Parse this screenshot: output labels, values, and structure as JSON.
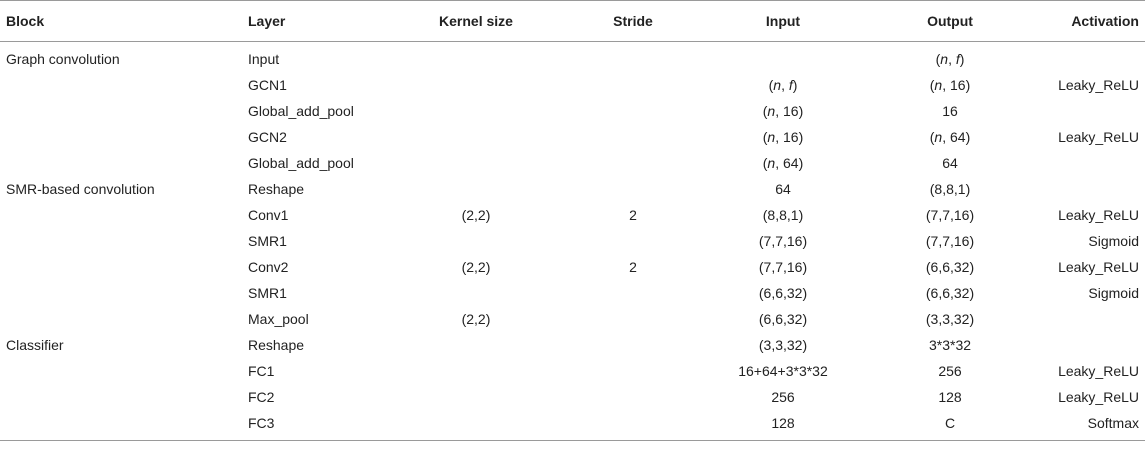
{
  "table": {
    "headers": {
      "block": "Block",
      "layer": "Layer",
      "kernel": "Kernel size",
      "stride": "Stride",
      "input": "Input",
      "output": "Output",
      "activation": "Activation"
    },
    "rows": [
      {
        "block": "Graph convolution",
        "layer": "Input",
        "kernel": "",
        "stride": "",
        "input": "",
        "output": "(n, f)",
        "activation": ""
      },
      {
        "block": "",
        "layer": "GCN1",
        "kernel": "",
        "stride": "",
        "input": "(n, f)",
        "output": "(n, 16)",
        "activation": "Leaky_ReLU"
      },
      {
        "block": "",
        "layer": "Global_add_pool",
        "kernel": "",
        "stride": "",
        "input": "(n, 16)",
        "output": "16",
        "activation": ""
      },
      {
        "block": "",
        "layer": "GCN2",
        "kernel": "",
        "stride": "",
        "input": "(n, 16)",
        "output": "(n, 64)",
        "activation": "Leaky_ReLU"
      },
      {
        "block": "",
        "layer": "Global_add_pool",
        "kernel": "",
        "stride": "",
        "input": "(n, 64)",
        "output": "64",
        "activation": ""
      },
      {
        "block": "SMR-based convolution",
        "layer": "Reshape",
        "kernel": "",
        "stride": "",
        "input": "64",
        "output": "(8,8,1)",
        "activation": ""
      },
      {
        "block": "",
        "layer": "Conv1",
        "kernel": "(2,2)",
        "stride": "2",
        "input": "(8,8,1)",
        "output": "(7,7,16)",
        "activation": "Leaky_ReLU"
      },
      {
        "block": "",
        "layer": "SMR1",
        "kernel": "",
        "stride": "",
        "input": "(7,7,16)",
        "output": "(7,7,16)",
        "activation": "Sigmoid"
      },
      {
        "block": "",
        "layer": "Conv2",
        "kernel": "(2,2)",
        "stride": "2",
        "input": "(7,7,16)",
        "output": "(6,6,32)",
        "activation": "Leaky_ReLU"
      },
      {
        "block": "",
        "layer": "SMR1",
        "kernel": "",
        "stride": "",
        "input": "(6,6,32)",
        "output": "(6,6,32)",
        "activation": "Sigmoid"
      },
      {
        "block": "",
        "layer": "Max_pool",
        "kernel": "(2,2)",
        "stride": "",
        "input": "(6,6,32)",
        "output": "(3,3,32)",
        "activation": ""
      },
      {
        "block": "Classifier",
        "layer": "Reshape",
        "kernel": "",
        "stride": "",
        "input": "(3,3,32)",
        "output": "3*3*32",
        "activation": ""
      },
      {
        "block": "",
        "layer": "FC1",
        "kernel": "",
        "stride": "",
        "input": "16+64+3*3*32",
        "output": "256",
        "activation": "Leaky_ReLU"
      },
      {
        "block": "",
        "layer": "FC2",
        "kernel": "",
        "stride": "",
        "input": "256",
        "output": "128",
        "activation": "Leaky_ReLU"
      },
      {
        "block": "",
        "layer": "FC3",
        "kernel": "",
        "stride": "",
        "input": "128",
        "output": "C",
        "activation": "Softmax"
      }
    ]
  }
}
